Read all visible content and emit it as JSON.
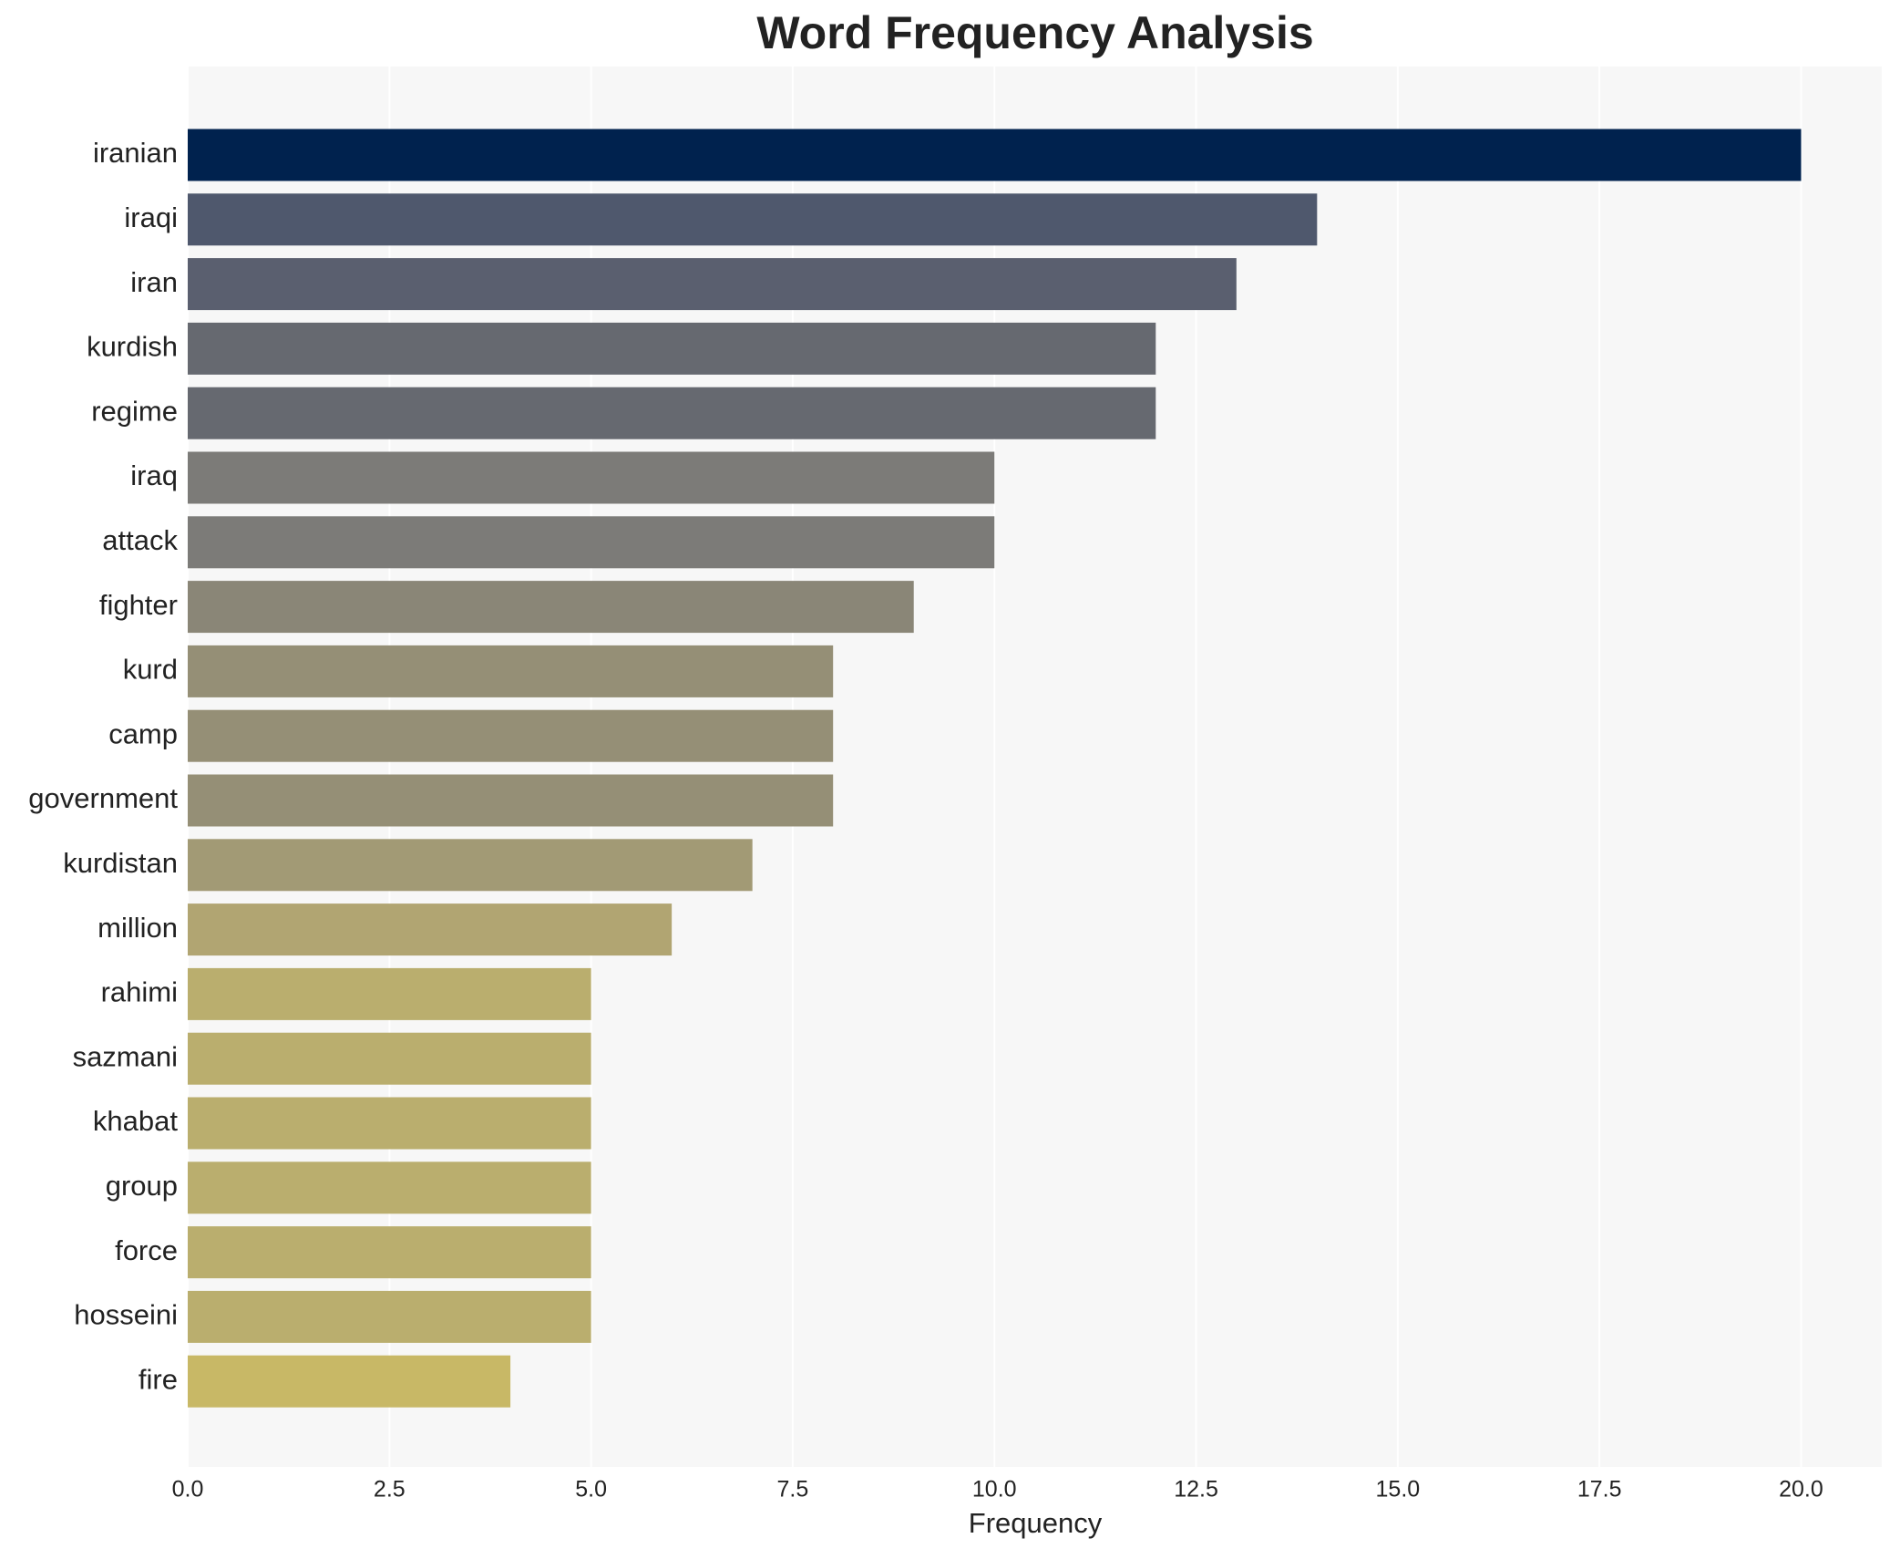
{
  "chart_data": {
    "type": "bar",
    "orientation": "horizontal",
    "title": "Word Frequency Analysis",
    "x_label": "Frequency",
    "categories": [
      "iranian",
      "iraqi",
      "iran",
      "kurdish",
      "regime",
      "iraq",
      "attack",
      "fighter",
      "kurd",
      "camp",
      "government",
      "kurdistan",
      "million",
      "rahimi",
      "sazmani",
      "khabat",
      "group",
      "force",
      "hosseini",
      "fire"
    ],
    "values": [
      20,
      14,
      13,
      12,
      12,
      10,
      10,
      9,
      8,
      8,
      8,
      7,
      6,
      5,
      5,
      5,
      5,
      5,
      5,
      4
    ],
    "colors": [
      "#00224e",
      "#4f586d",
      "#5a5f6f",
      "#666970",
      "#666970",
      "#7c7b78",
      "#7c7b78",
      "#8a8677",
      "#958f76",
      "#958f76",
      "#958f76",
      "#a29a75",
      "#b1a572",
      "#baae6e",
      "#baae6e",
      "#baae6e",
      "#baae6e",
      "#baae6e",
      "#baae6e",
      "#c8b866"
    ],
    "xlim": [
      0,
      21
    ],
    "xticks": [
      {
        "value": 0,
        "label": "0.0"
      },
      {
        "value": 2.5,
        "label": "2.5"
      },
      {
        "value": 5,
        "label": "5.0"
      },
      {
        "value": 7.5,
        "label": "7.5"
      },
      {
        "value": 10,
        "label": "10.0"
      },
      {
        "value": 12.5,
        "label": "12.5"
      },
      {
        "value": 15,
        "label": "15.0"
      },
      {
        "value": 17.5,
        "label": "17.5"
      },
      {
        "value": 20,
        "label": "20.0"
      }
    ],
    "grid": true
  }
}
